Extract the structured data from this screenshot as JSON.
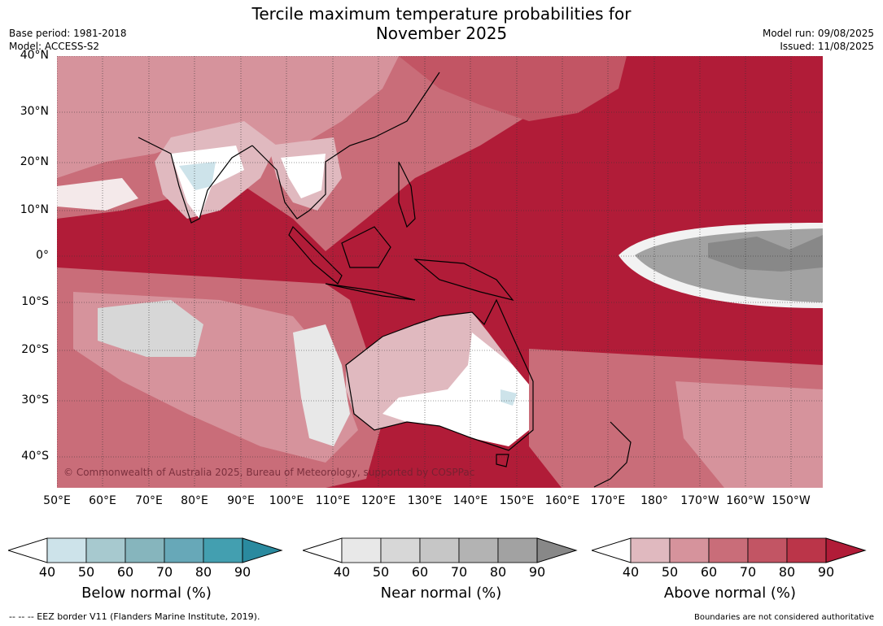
{
  "title_line1": "Tercile maximum temperature probabilities for",
  "title_line2": "November 2025",
  "base_period": "Base period: 1981-2018",
  "model": "Model: ACCESS-S2",
  "model_run": "Model run: 09/08/2025",
  "issued": "Issued: 11/08/2025",
  "copyright": "© Commonwealth of Australia 2025, Bureau of Meteorology, supported by COSPPac",
  "lat_labels": [
    "40°N",
    "30°N",
    "20°N",
    "10°N",
    "0°",
    "10°S",
    "20°S",
    "30°S",
    "40°S"
  ],
  "lon_labels": [
    "50°E",
    "60°E",
    "70°E",
    "80°E",
    "90°E",
    "100°E",
    "110°E",
    "120°E",
    "130°E",
    "140°E",
    "150°E",
    "160°E",
    "170°E",
    "180°",
    "170°W",
    "160°W",
    "150°W"
  ],
  "colorbars": [
    {
      "title": "Below normal (%)",
      "ticks": [
        "40",
        "50",
        "60",
        "70",
        "80",
        "90"
      ],
      "colors": [
        "#cde3ea",
        "#a7c9cf",
        "#86b5bd",
        "#67a8b8",
        "#439fb0",
        "#2a8a9f"
      ]
    },
    {
      "title": "Near normal (%)",
      "ticks": [
        "40",
        "50",
        "60",
        "70",
        "80",
        "90"
      ],
      "colors": [
        "#e8e8e8",
        "#d7d7d7",
        "#c6c6c6",
        "#b3b3b3",
        "#a2a2a2",
        "#888888"
      ]
    },
    {
      "title": "Above normal (%)",
      "ticks": [
        "40",
        "50",
        "60",
        "70",
        "80",
        "90"
      ],
      "colors": [
        "#e0b9bf",
        "#d6939c",
        "#c96d79",
        "#c25564",
        "#bb3549",
        "#b11c38"
      ]
    }
  ],
  "footer_left": "--  --  -- EEZ border V11 (Flanders Marine Institute, 2019).",
  "footer_right": "Boundaries are not considered authoritative",
  "map_colors": {
    "above_90": "#b11c38",
    "above_70": "#c25564",
    "above_60": "#c96d79",
    "above_50": "#d6939c",
    "above_40": "#e0b9bf",
    "near_60": "#c6c6c6",
    "near_80": "#a2a2a2",
    "below_40": "#cde3ea",
    "below_50": "#a7c9cf",
    "land_outline": "#000000"
  }
}
